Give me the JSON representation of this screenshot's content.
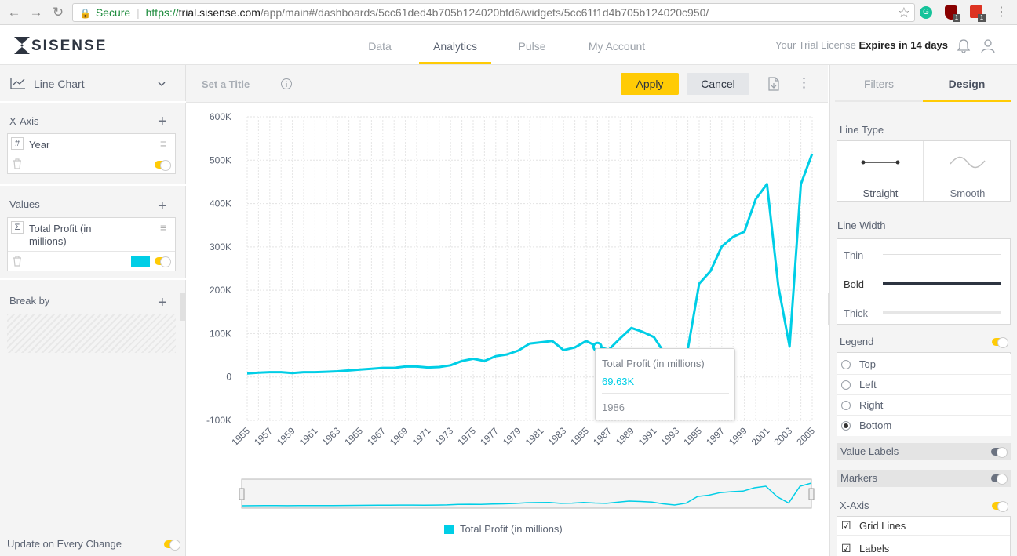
{
  "browser": {
    "secure_label": "Secure",
    "url_scheme": "https://",
    "url_host": "trial.sisense.com",
    "url_path": "/app/main#/dashboards/5cc61ded4b705b124020bfd6/widgets/5cc61f1d4b705b124020c950/",
    "ext_badge_1": "1",
    "ext_badge_2": "1"
  },
  "header": {
    "logo_text": "SISENSE",
    "tabs": [
      {
        "label": "Data",
        "active": false
      },
      {
        "label": "Analytics",
        "active": true
      },
      {
        "label": "Pulse",
        "active": false
      },
      {
        "label": "My Account",
        "active": false
      }
    ],
    "license_text": "Your Trial License",
    "license_expiry": "Expires in 14 days"
  },
  "left_panel": {
    "chart_type": "Line Chart",
    "xaxis_title": "X-Axis",
    "xaxis_field": {
      "type_symbol": "#",
      "label": "Year"
    },
    "values_title": "Values",
    "values_field": {
      "type_symbol": "Σ",
      "label": "Total Profit (in millions)",
      "color": "#00cee6"
    },
    "breakby_title": "Break by",
    "update_label": "Update on Every Change"
  },
  "toolbar": {
    "title_placeholder": "Set a Title",
    "apply_label": "Apply",
    "cancel_label": "Cancel"
  },
  "tooltip": {
    "series": "Total Profit (in millions)",
    "value": "69.63K",
    "category": "1986"
  },
  "right_panel": {
    "tabs": [
      {
        "label": "Filters",
        "active": false
      },
      {
        "label": "Design",
        "active": true
      }
    ],
    "line_type_title": "Line Type",
    "line_types": [
      "Straight",
      "Smooth"
    ],
    "line_width_title": "Line Width",
    "line_widths": [
      "Thin",
      "Bold",
      "Thick"
    ],
    "legend_title": "Legend",
    "legend_options": [
      "Top",
      "Left",
      "Right",
      "Bottom"
    ],
    "legend_selected": "Bottom",
    "value_labels_title": "Value Labels",
    "markers_title": "Markers",
    "xaxis_title": "X-Axis",
    "xaxis_options": [
      "Grid Lines",
      "Labels"
    ]
  },
  "colors": {
    "accent": "#ffcb05",
    "series": "#00cee6"
  },
  "chart_data": {
    "type": "line",
    "series": [
      {
        "name": "Total Profit (in millions)",
        "color": "#00cee6"
      }
    ],
    "x": [
      1955,
      1956,
      1957,
      1958,
      1959,
      1960,
      1961,
      1962,
      1963,
      1964,
      1965,
      1966,
      1967,
      1968,
      1969,
      1970,
      1971,
      1972,
      1973,
      1974,
      1975,
      1976,
      1977,
      1978,
      1979,
      1980,
      1981,
      1982,
      1983,
      1984,
      1985,
      1986,
      1987,
      1988,
      1989,
      1990,
      1991,
      1992,
      1993,
      1994,
      1995,
      1996,
      1997,
      1998,
      1999,
      2000,
      2001,
      2002,
      2003,
      2004,
      2005
    ],
    "values": [
      8000,
      10000,
      11000,
      11000,
      9000,
      11000,
      11000,
      12000,
      13000,
      15000,
      17000,
      19000,
      21000,
      21000,
      24000,
      24000,
      22000,
      23000,
      27000,
      37000,
      42000,
      37000,
      48000,
      52000,
      61000,
      77000,
      80000,
      83000,
      62000,
      68000,
      83000,
      69630,
      63000,
      89000,
      113000,
      104000,
      92000,
      52000,
      25000,
      65000,
      215000,
      244000,
      301000,
      323000,
      335000,
      410000,
      445000,
      210000,
      70000,
      445000,
      515000
    ],
    "x_ticks": [
      "1955",
      "1957",
      "1959",
      "1961",
      "1963",
      "1965",
      "1967",
      "1969",
      "1971",
      "1973",
      "1975",
      "1977",
      "1979",
      "1981",
      "1983",
      "1985",
      "1987",
      "1989",
      "1991",
      "1993",
      "1995",
      "1997",
      "1999",
      "2001",
      "2003",
      "2005"
    ],
    "y_ticks": [
      "-100K",
      "0",
      "100K",
      "200K",
      "300K",
      "400K",
      "500K",
      "600K"
    ],
    "ylim": [
      -100000,
      600000
    ],
    "legend": "bottom",
    "grid": true
  }
}
